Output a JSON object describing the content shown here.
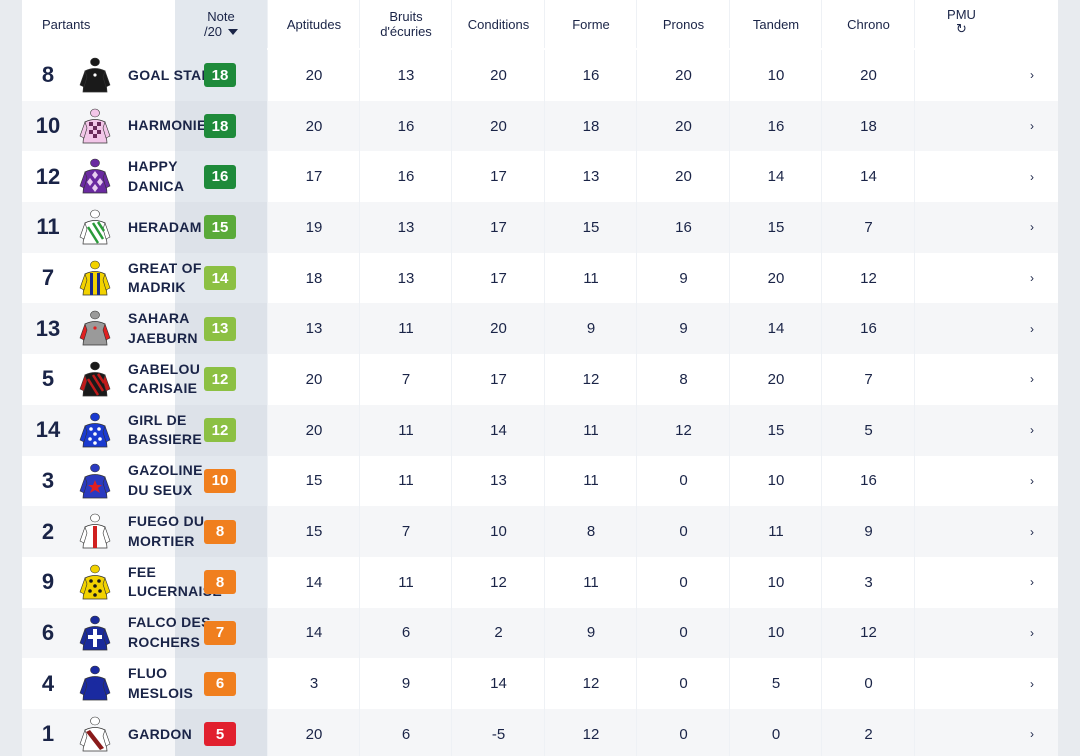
{
  "columns": {
    "partants": "Partants",
    "note": "Note",
    "note_sub": "/20",
    "aptitudes": "Aptitudes",
    "bruits_1": "Bruits",
    "bruits_2": "d'écuries",
    "conditions": "Conditions",
    "forme": "Forme",
    "pronos": "Pronos",
    "tandem": "Tandem",
    "chrono": "Chrono",
    "pmu": "PMU"
  },
  "colors": {
    "dark_green": "#1e8a3a",
    "green": "#5aaa3a",
    "light_green": "#8cc043",
    "orange": "#f07f1e",
    "red": "#e1202e"
  },
  "rows": [
    {
      "num": "8",
      "name": "GOAL STAR",
      "note": "18",
      "color": "#1e8a3a",
      "jersey": {
        "body": "#1a1a1a",
        "sleeve": "#1a1a1a",
        "pattern": "solid",
        "accent": "#ffffff"
      },
      "scores": [
        "20",
        "13",
        "20",
        "16",
        "20",
        "10",
        "20"
      ]
    },
    {
      "num": "10",
      "name": "HARMONIE",
      "note": "18",
      "color": "#1e8a3a",
      "jersey": {
        "body": "#f2c6e8",
        "sleeve": "#f2c6e8",
        "pattern": "check",
        "accent": "#6a2a5a"
      },
      "scores": [
        "20",
        "16",
        "20",
        "18",
        "20",
        "16",
        "18"
      ]
    },
    {
      "num": "12",
      "name": "HAPPY DANICA",
      "note": "16",
      "color": "#1e8a3a",
      "jersey": {
        "body": "#6a2aa0",
        "sleeve": "#6a2aa0",
        "pattern": "diamond",
        "accent": "#e8d0f0"
      },
      "scores": [
        "17",
        "16",
        "17",
        "13",
        "20",
        "14",
        "14"
      ]
    },
    {
      "num": "11",
      "name": "HERADAM",
      "note": "15",
      "color": "#5aaa3a",
      "jersey": {
        "body": "#ffffff",
        "sleeve": "#ffffff",
        "pattern": "stripe",
        "accent": "#2a9a3a"
      },
      "scores": [
        "19",
        "13",
        "17",
        "15",
        "16",
        "15",
        "7"
      ]
    },
    {
      "num": "7",
      "name": "GREAT OF MADRIK",
      "note": "14",
      "color": "#8cc043",
      "jersey": {
        "body": "#f2d200",
        "sleeve": "#f2d200",
        "pattern": "vstripe",
        "accent": "#1a2a8a"
      },
      "scores": [
        "18",
        "13",
        "17",
        "11",
        "9",
        "20",
        "12"
      ]
    },
    {
      "num": "13",
      "name": "SAHARA JAEBURN",
      "note": "13",
      "color": "#8cc043",
      "jersey": {
        "body": "#9a9a9a",
        "sleeve": "#e02020",
        "pattern": "solid",
        "accent": "#e02020"
      },
      "scores": [
        "13",
        "11",
        "20",
        "9",
        "9",
        "14",
        "16"
      ]
    },
    {
      "num": "5",
      "name": "GABELOU CARISAIE",
      "note": "12",
      "color": "#8cc043",
      "jersey": {
        "body": "#1a1a1a",
        "sleeve": "#c01a1a",
        "pattern": "stripe",
        "accent": "#c01a1a"
      },
      "scores": [
        "20",
        "7",
        "17",
        "12",
        "8",
        "20",
        "7"
      ]
    },
    {
      "num": "14",
      "name": "GIRL DE BASSIERE",
      "note": "12",
      "color": "#8cc043",
      "jersey": {
        "body": "#1a3ad0",
        "sleeve": "#1a3ad0",
        "pattern": "dots",
        "accent": "#ffffff"
      },
      "scores": [
        "20",
        "11",
        "14",
        "11",
        "12",
        "15",
        "5"
      ]
    },
    {
      "num": "3",
      "name": "GAZOLINE DU SEUX",
      "note": "10",
      "color": "#f07f1e",
      "jersey": {
        "body": "#2a3ac0",
        "sleeve": "#2a3ac0",
        "pattern": "star",
        "accent": "#e02020"
      },
      "scores": [
        "15",
        "11",
        "13",
        "11",
        "0",
        "10",
        "16"
      ]
    },
    {
      "num": "2",
      "name": "FUEGO DU MORTIER",
      "note": "8",
      "color": "#f07f1e",
      "jersey": {
        "body": "#ffffff",
        "sleeve": "#ffffff",
        "pattern": "band",
        "accent": "#d02020"
      },
      "scores": [
        "15",
        "7",
        "10",
        "8",
        "0",
        "11",
        "9"
      ]
    },
    {
      "num": "9",
      "name": "FEE LUCERNAISE",
      "note": "8",
      "color": "#f07f1e",
      "jersey": {
        "body": "#f2d200",
        "sleeve": "#f2d200",
        "pattern": "dots",
        "accent": "#1a1a1a"
      },
      "scores": [
        "14",
        "11",
        "12",
        "11",
        "0",
        "10",
        "3"
      ]
    },
    {
      "num": "6",
      "name": "FALCO DES ROCHERS",
      "note": "7",
      "color": "#f07f1e",
      "jersey": {
        "body": "#1a2a9a",
        "sleeve": "#1a2a9a",
        "pattern": "cross",
        "accent": "#ffffff"
      },
      "scores": [
        "14",
        "6",
        "2",
        "9",
        "0",
        "10",
        "12"
      ]
    },
    {
      "num": "4",
      "name": "FLUO MESLOIS",
      "note": "6",
      "color": "#f07f1e",
      "jersey": {
        "body": "#1a2aa0",
        "sleeve": "#1a2aa0",
        "pattern": "solid",
        "accent": "#1a2aa0"
      },
      "scores": [
        "3",
        "9",
        "14",
        "12",
        "0",
        "5",
        "0"
      ]
    },
    {
      "num": "1",
      "name": "GARDON",
      "note": "5",
      "color": "#e1202e",
      "jersey": {
        "body": "#ffffff",
        "sleeve": "#ffffff",
        "pattern": "sash",
        "accent": "#8a1a1a"
      },
      "scores": [
        "20",
        "6",
        "-5",
        "12",
        "0",
        "0",
        "2"
      ]
    }
  ]
}
